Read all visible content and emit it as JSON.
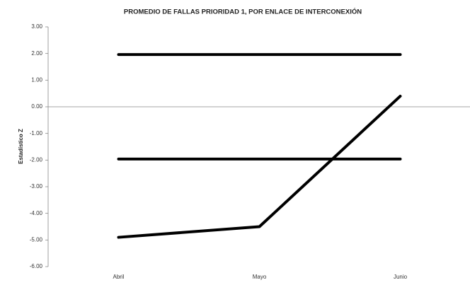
{
  "chart_data": {
    "type": "line",
    "title": "PROMEDIO DE FALLAS PRIORIDAD 1, POR ENLACE DE INTERCONEXIÓN",
    "y_label": "Estadístico Z",
    "categories": [
      "Abril",
      "Mayo",
      "Junio"
    ],
    "series": [
      {
        "color": "#000000",
        "values": [
          1.96,
          1.96,
          1.96
        ]
      },
      {
        "color": "#000000",
        "values": [
          -1.96,
          -1.96,
          -1.96
        ]
      },
      {
        "color": "#000000",
        "values": [
          -4.9,
          -4.5,
          0.4
        ]
      }
    ],
    "ylim": [
      -6,
      3
    ],
    "yticks": [
      {
        "value": 3,
        "label": "3.00"
      },
      {
        "value": 2,
        "label": "2.00"
      },
      {
        "value": 1,
        "label": "1.00"
      },
      {
        "value": 0,
        "label": "0.00"
      },
      {
        "value": -1,
        "label": "-1.00"
      },
      {
        "value": -2,
        "label": "-2.00"
      },
      {
        "value": -3,
        "label": "-3.00"
      },
      {
        "value": -4,
        "label": "-4.00"
      },
      {
        "value": -5,
        "label": "-5.00"
      },
      {
        "value": -6,
        "label": "-6.00"
      }
    ]
  }
}
